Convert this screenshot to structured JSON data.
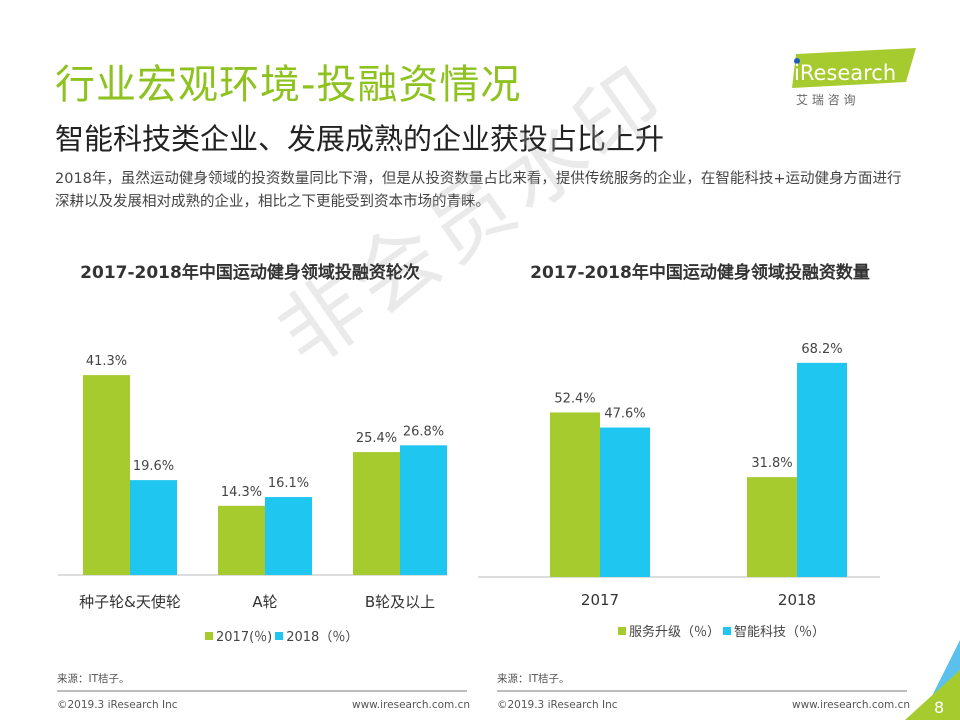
{
  "header": {
    "title": "行业宏观环境-投融资情况",
    "subtitle": "智能科技类企业、发展成熟的企业获投占比上升",
    "description": "2018年，虽然运动健身领域的投资数量同比下滑，但是从投资数量占比来看，提供传统服务的企业，在智能科技+运动健身方面进行深耕以及发展相对成熟的企业，相比之下更能受到资本市场的青睐。"
  },
  "logo": {
    "text": "iResearch",
    "subtext": "艾 瑞 咨 询"
  },
  "watermark": "非会员水印",
  "colors": {
    "green": "#a6cb2e",
    "blue": "#1ec6f0",
    "title": "#8dc21f"
  },
  "chart_data": [
    {
      "type": "bar",
      "title": "2017-2018年中国运动健身领域投融资轮次",
      "categories": [
        "种子轮&天使轮",
        "A轮",
        "B轮及以上"
      ],
      "series": [
        {
          "name": "2017(％)",
          "values": [
            41.3,
            14.3,
            25.4
          ]
        },
        {
          "name": "2018（％）",
          "values": [
            19.6,
            16.1,
            26.8
          ]
        }
      ],
      "labels": [
        [
          "41.3%",
          "14.3%",
          "25.4%"
        ],
        [
          "19.6%",
          "16.1%",
          "26.8%"
        ]
      ],
      "legend": "bottom",
      "grid": false
    },
    {
      "type": "bar",
      "title": "2017-2018年中国运动健身领域投融资数量",
      "categories": [
        "2017",
        "2018"
      ],
      "series": [
        {
          "name": "服务升级（％）",
          "values": [
            52.4,
            31.8
          ]
        },
        {
          "name": "智能科技（％）",
          "values": [
            47.6,
            68.2
          ]
        }
      ],
      "labels": [
        [
          "52.4%",
          "31.8%"
        ],
        [
          "47.6%",
          "68.2%"
        ]
      ],
      "legend": "bottom",
      "grid": false
    }
  ],
  "footer": {
    "source": "来源：IT桔子。",
    "copyright": "©2019.3  iResearch Inc",
    "website": "www.iresearch.com.cn",
    "page": "8"
  }
}
